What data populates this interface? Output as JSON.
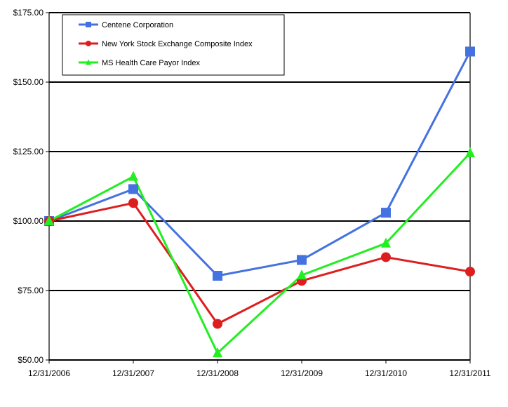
{
  "chart_data": {
    "type": "line",
    "categories": [
      "12/31/2006",
      "12/31/2007",
      "12/31/2008",
      "12/31/2009",
      "12/31/2010",
      "12/31/2011"
    ],
    "ylim": [
      50,
      175
    ],
    "yticks": [
      "$50.00",
      "$75.00",
      "$100.00",
      "$125.00",
      "$150.00",
      "$175.00"
    ],
    "ytick_values": [
      50,
      75,
      100,
      125,
      150,
      175
    ],
    "grid": true,
    "legend_position": "top-left",
    "series": [
      {
        "name": "Centene Corporation",
        "color": "#4472E0",
        "marker": "square",
        "values": [
          100.0,
          111.5,
          80.3,
          86.0,
          103.0,
          161.0
        ]
      },
      {
        "name": "New York Stock Exchange Composite Index",
        "color": "#DD1E1E",
        "marker": "circle",
        "values": [
          100.0,
          106.5,
          63.0,
          78.5,
          87.0,
          81.8
        ]
      },
      {
        "name": "MS Health Care Payor Index",
        "color": "#22EE22",
        "marker": "triangle",
        "values": [
          100.0,
          116.0,
          52.5,
          80.5,
          92.0,
          124.5
        ]
      }
    ]
  }
}
